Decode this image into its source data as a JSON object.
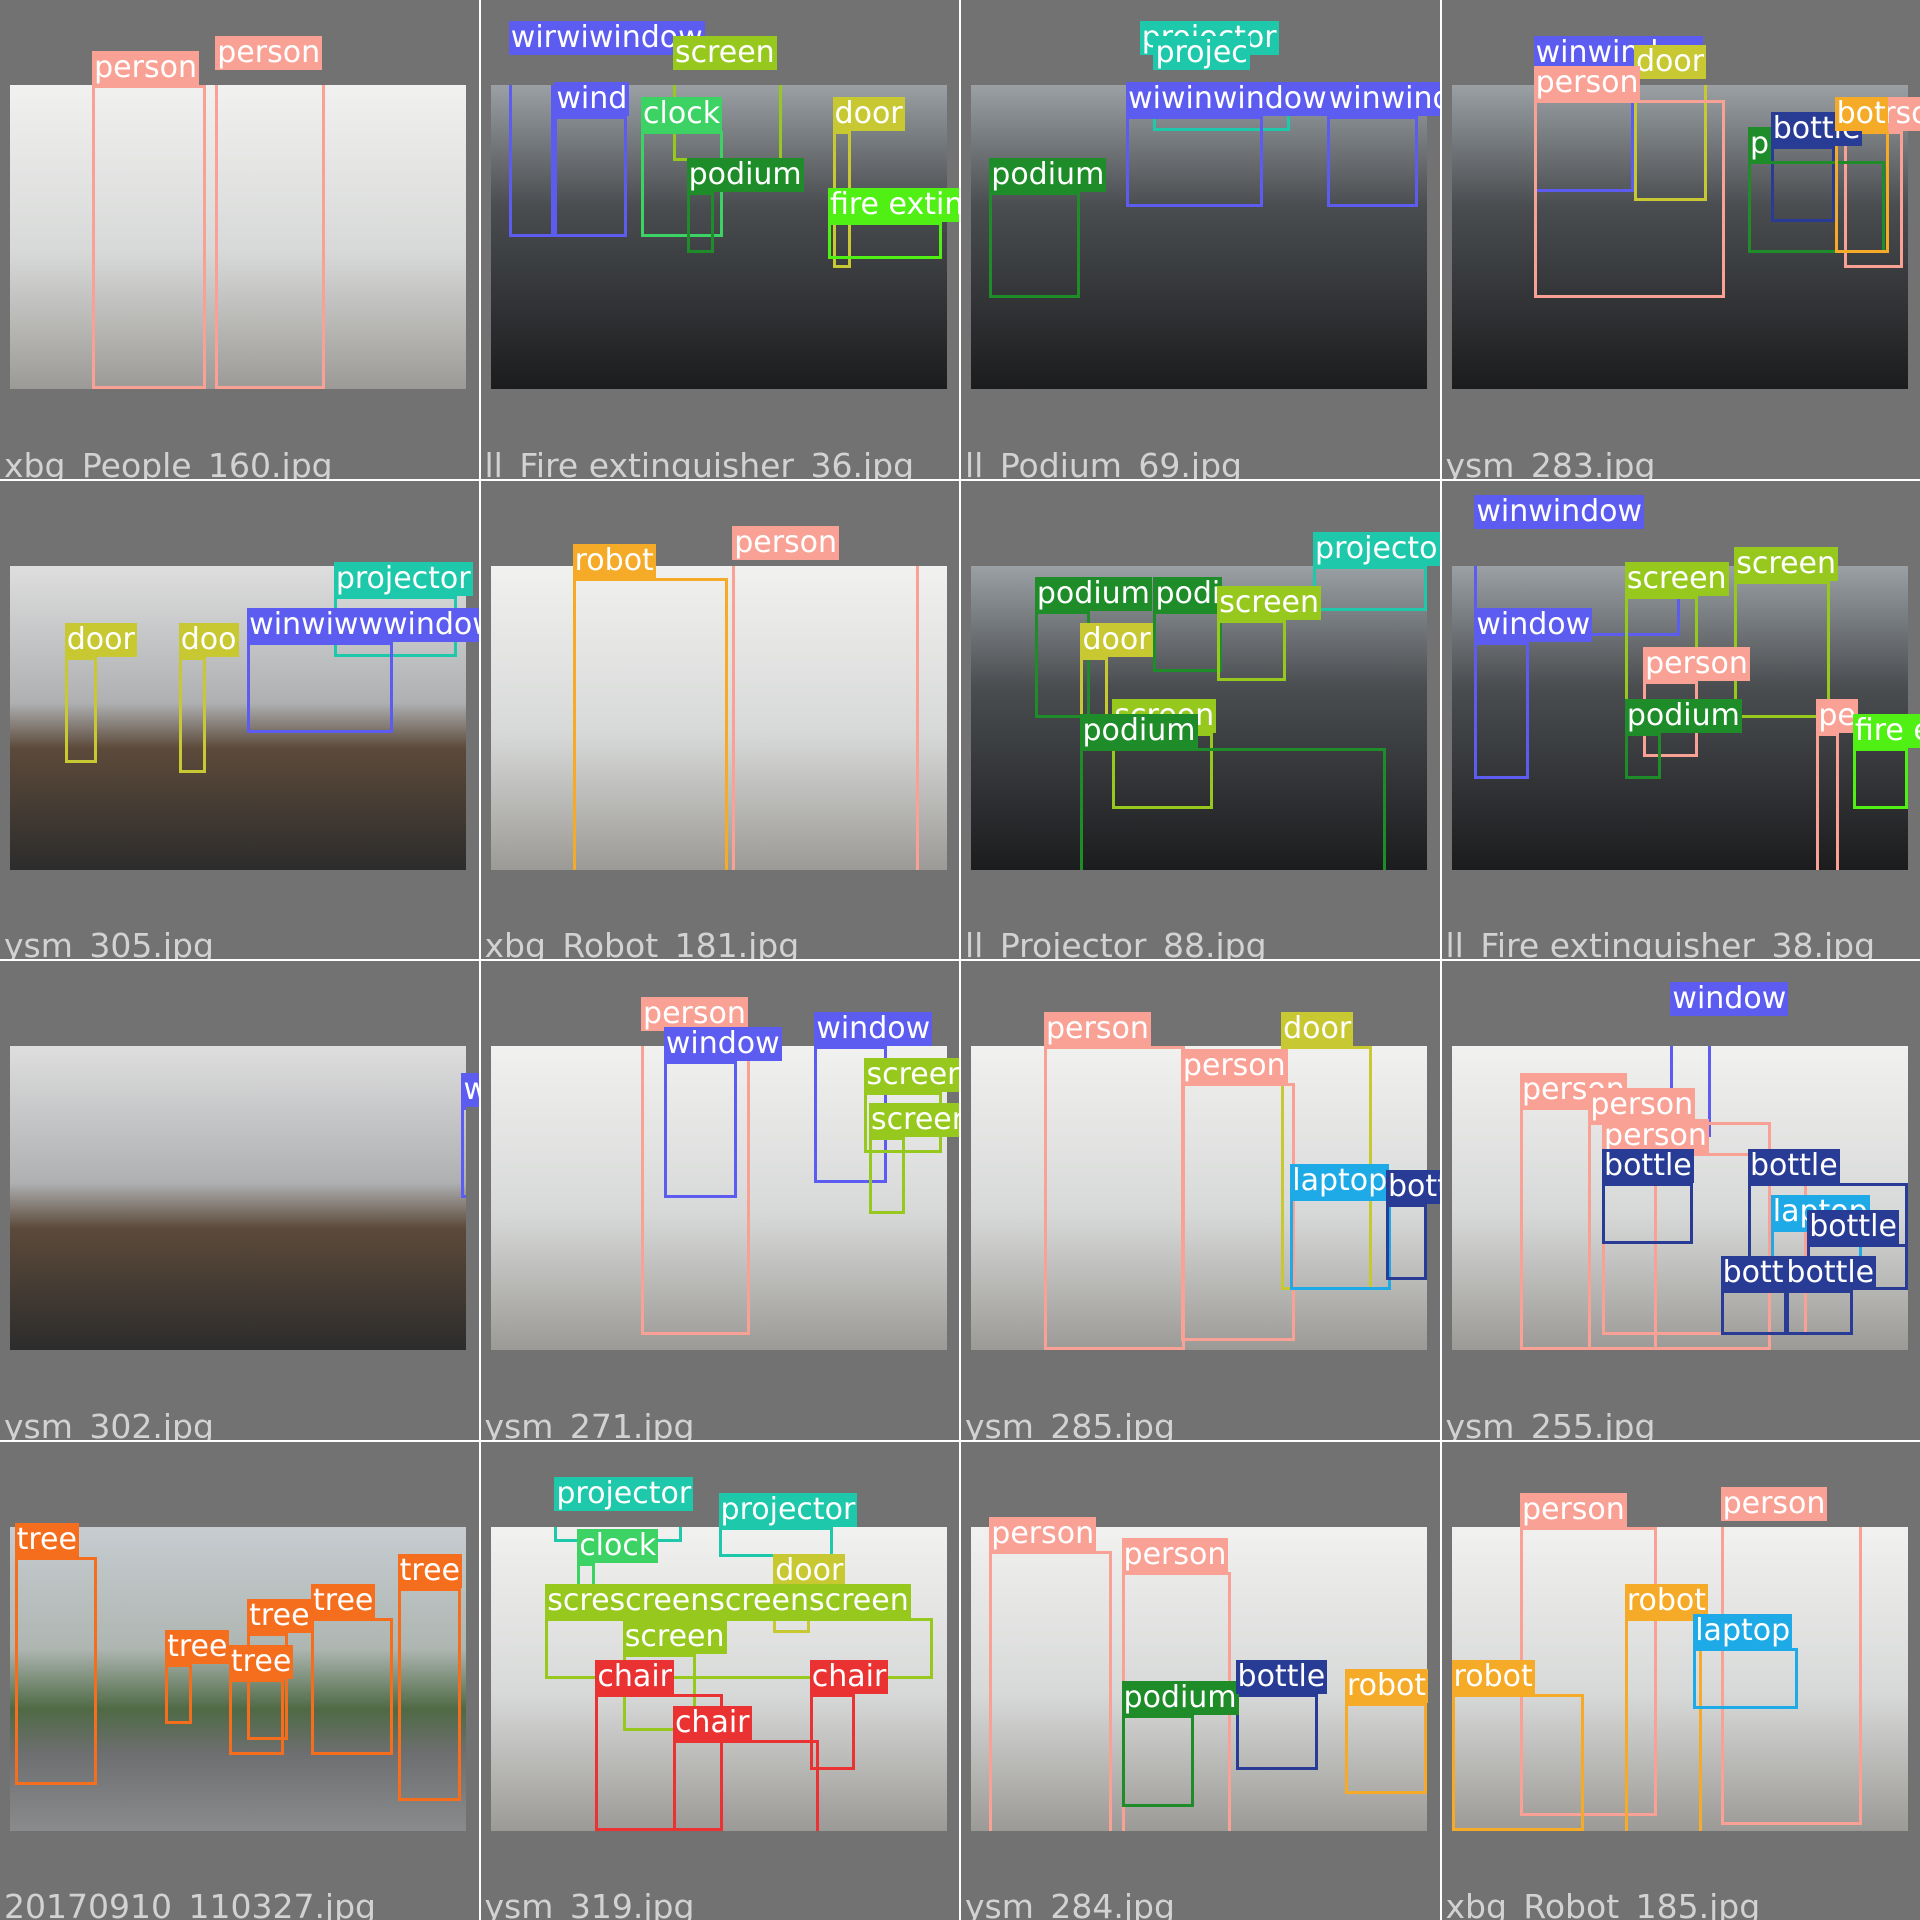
{
  "colors": {
    "person": "#f9a195",
    "window": "#5c5cf0",
    "screen": "#96c81e",
    "door": "#c8c832",
    "podium": "#1e8c28",
    "projector": "#1ec8aa",
    "fire_extinguisher": "#50f014",
    "clock": "#3cd264",
    "robot": "#f5aa28",
    "bottle": "#283c96",
    "laptop": "#1eaae6",
    "tree": "#f56e1e",
    "chair": "#eb3232"
  },
  "tiles": [
    {
      "filename": "xbg_People_160.jpg",
      "style": "bright",
      "labels": [
        {
          "text": "person",
          "cls": "person"
        },
        {
          "text": "person",
          "cls": "person"
        }
      ]
    },
    {
      "filename": "ll_Fire extinguisher_36.jpg",
      "style": "dark",
      "labels": [
        {
          "text": "wirwiwindow",
          "cls": "window"
        },
        {
          "text": "screen",
          "cls": "screen"
        },
        {
          "text": "wind",
          "cls": "window"
        },
        {
          "text": "clock",
          "cls": "clock"
        },
        {
          "text": "door",
          "cls": "door"
        },
        {
          "text": "podium",
          "cls": "podium"
        },
        {
          "text": "fire exting",
          "cls": "fire_extinguisher"
        }
      ]
    },
    {
      "filename": "ll_Podium_69.jpg",
      "style": "dark",
      "labels": [
        {
          "text": "projector",
          "cls": "projector"
        },
        {
          "text": "projec",
          "cls": "projector"
        },
        {
          "text": "wiwinwindow",
          "cls": "window"
        },
        {
          "text": "winwindow",
          "cls": "window"
        },
        {
          "text": "podium",
          "cls": "podium"
        }
      ]
    },
    {
      "filename": "ysm_283.jpg",
      "style": "dark",
      "labels": [
        {
          "text": "winwindow",
          "cls": "window"
        },
        {
          "text": "door",
          "cls": "door"
        },
        {
          "text": "person",
          "cls": "person"
        },
        {
          "text": "perso",
          "cls": "person"
        },
        {
          "text": "bottle",
          "cls": "bottle"
        },
        {
          "text": "p",
          "cls": "podium"
        },
        {
          "text": "bot",
          "cls": "robot"
        }
      ]
    },
    {
      "filename": "ysm_305.jpg",
      "style": "pano",
      "labels": [
        {
          "text": "projector",
          "cls": "projector"
        },
        {
          "text": "door",
          "cls": "door"
        },
        {
          "text": "doo",
          "cls": "door"
        },
        {
          "text": "winwiwwwindow",
          "cls": "window"
        }
      ]
    },
    {
      "filename": "xbg_Robot_181.jpg",
      "style": "bright",
      "labels": [
        {
          "text": "robot",
          "cls": "robot"
        },
        {
          "text": "person",
          "cls": "person"
        }
      ]
    },
    {
      "filename": "ll_Projector_88.jpg",
      "style": "dark",
      "labels": [
        {
          "text": "projector",
          "cls": "projector"
        },
        {
          "text": "podium",
          "cls": "podium"
        },
        {
          "text": "podi",
          "cls": "podium"
        },
        {
          "text": "screen",
          "cls": "screen"
        },
        {
          "text": "door",
          "cls": "door"
        },
        {
          "text": "screen",
          "cls": "screen"
        },
        {
          "text": "podium",
          "cls": "podium"
        }
      ]
    },
    {
      "filename": "ll_Fire extinguisher_38.jpg",
      "style": "dark",
      "labels": [
        {
          "text": "winwindow",
          "cls": "window"
        },
        {
          "text": "screen",
          "cls": "screen"
        },
        {
          "text": "screen",
          "cls": "screen"
        },
        {
          "text": "window",
          "cls": "window"
        },
        {
          "text": "person",
          "cls": "person"
        },
        {
          "text": "podium",
          "cls": "podium"
        },
        {
          "text": "pe",
          "cls": "person"
        },
        {
          "text": "fire e",
          "cls": "fire_extinguisher"
        }
      ]
    },
    {
      "filename": "ysm_302.jpg",
      "style": "pano",
      "labels": [
        {
          "text": "window",
          "cls": "window"
        }
      ]
    },
    {
      "filename": "ysm_271.jpg",
      "style": "bright",
      "labels": [
        {
          "text": "person",
          "cls": "person"
        },
        {
          "text": "window",
          "cls": "window"
        },
        {
          "text": "window",
          "cls": "window"
        },
        {
          "text": "screen",
          "cls": "screen"
        },
        {
          "text": "screen",
          "cls": "screen"
        }
      ]
    },
    {
      "filename": "ysm_285.jpg",
      "style": "bright",
      "labels": [
        {
          "text": "person",
          "cls": "person"
        },
        {
          "text": "door",
          "cls": "door"
        },
        {
          "text": "person",
          "cls": "person"
        },
        {
          "text": "laptop",
          "cls": "laptop"
        },
        {
          "text": "bottle",
          "cls": "bottle"
        }
      ]
    },
    {
      "filename": "ysm_255.jpg",
      "style": "bright",
      "labels": [
        {
          "text": "window",
          "cls": "window"
        },
        {
          "text": "person",
          "cls": "person"
        },
        {
          "text": "person",
          "cls": "person"
        },
        {
          "text": "person",
          "cls": "person"
        },
        {
          "text": "bottle",
          "cls": "bottle"
        },
        {
          "text": "bottle",
          "cls": "bottle"
        },
        {
          "text": "laptop",
          "cls": "laptop"
        },
        {
          "text": "bottle",
          "cls": "bottle"
        },
        {
          "text": "bottle",
          "cls": "bottle"
        },
        {
          "text": "bottle",
          "cls": "bottle"
        }
      ]
    },
    {
      "filename": "20170910_110327.jpg",
      "style": "street",
      "labels": [
        {
          "text": "tree",
          "cls": "tree"
        },
        {
          "text": "tree",
          "cls": "tree"
        },
        {
          "text": "tree",
          "cls": "tree"
        },
        {
          "text": "tree",
          "cls": "tree"
        },
        {
          "text": "tree",
          "cls": "tree"
        },
        {
          "text": "tree",
          "cls": "tree"
        }
      ]
    },
    {
      "filename": "ysm_319.jpg",
      "style": "bright",
      "labels": [
        {
          "text": "projector",
          "cls": "projector"
        },
        {
          "text": "projector",
          "cls": "projector"
        },
        {
          "text": "clock",
          "cls": "clock"
        },
        {
          "text": "door",
          "cls": "door"
        },
        {
          "text": "screscreenscreenscreen",
          "cls": "screen"
        },
        {
          "text": "screen",
          "cls": "screen"
        },
        {
          "text": "chair",
          "cls": "chair"
        },
        {
          "text": "chair",
          "cls": "chair"
        },
        {
          "text": "chair",
          "cls": "chair"
        }
      ]
    },
    {
      "filename": "ysm_284.jpg",
      "style": "bright",
      "labels": [
        {
          "text": "person",
          "cls": "person"
        },
        {
          "text": "person",
          "cls": "person"
        },
        {
          "text": "podium",
          "cls": "podium"
        },
        {
          "text": "bottle",
          "cls": "bottle"
        },
        {
          "text": "robot",
          "cls": "robot"
        }
      ]
    },
    {
      "filename": "xbg_Robot_185.jpg",
      "style": "bright",
      "labels": [
        {
          "text": "person",
          "cls": "person"
        },
        {
          "text": "person",
          "cls": "person"
        },
        {
          "text": "robot",
          "cls": "robot"
        },
        {
          "text": "laptop",
          "cls": "laptop"
        },
        {
          "text": "robot",
          "cls": "robot"
        }
      ]
    }
  ]
}
